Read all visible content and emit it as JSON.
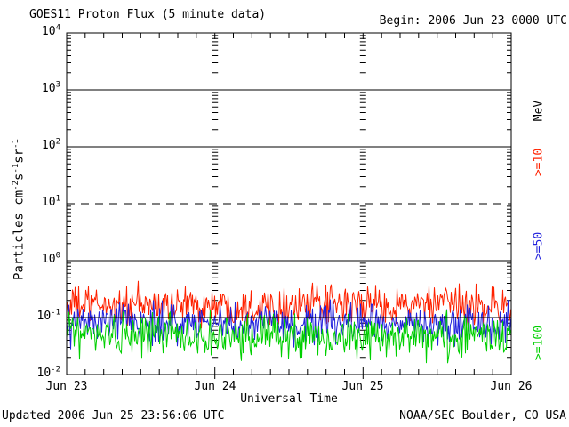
{
  "chart_data": {
    "type": "line",
    "title": "GOES11 Proton Flux (5 minute data)",
    "begin_annotation": "Begin: 2006 Jun 23 0000 UTC",
    "xlabel": "Universal Time",
    "ylabel": "Particles cm-2 s-1 sr-1",
    "ylabel_parts": [
      "Particles cm",
      "-2",
      "s",
      "-1",
      "sr",
      "-1"
    ],
    "x_ticks": [
      "Jun 23",
      "Jun 24",
      "Jun 25",
      "Jun 26"
    ],
    "x_range_days": 3,
    "x_minor_ticks_per_day": 8,
    "y_scale": "log10",
    "y_log_range": [
      -2,
      4
    ],
    "y_ticks": [
      {
        "base": "10",
        "exp": "4"
      },
      {
        "base": "10",
        "exp": "3"
      },
      {
        "base": "10",
        "exp": "2"
      },
      {
        "base": "10",
        "exp": "1"
      },
      {
        "base": "10",
        "exp": "0"
      },
      {
        "base": "10",
        "exp": "-1"
      },
      {
        "base": "10",
        "exp": "-2"
      }
    ],
    "grid": {
      "solid_exponents": [
        3,
        2,
        0,
        -1
      ],
      "dashed_exponents": [
        1
      ],
      "day_boundary_tick_lines_at_day": [
        1,
        2
      ]
    },
    "legend_unit": "MeV",
    "series": [
      {
        "name": ">=10",
        "unit": "MeV",
        "color": "#ff2200",
        "median_flux": 0.165,
        "log10_spread": 0.33,
        "approx_flux_range": [
          0.06,
          0.45
        ]
      },
      {
        "name": ">=50",
        "unit": "MeV",
        "color": "#2222dd",
        "median_flux": 0.079,
        "log10_spread": 0.33,
        "approx_flux_range": [
          0.03,
          0.2
        ]
      },
      {
        "name": ">=100",
        "unit": "MeV",
        "color": "#00d000",
        "median_flux": 0.047,
        "log10_spread": 0.36,
        "approx_flux_range": [
          0.015,
          0.11
        ]
      }
    ]
  },
  "footer": {
    "updated": "Updated 2006 Jun 25 23:56:06 UTC",
    "source": "NOAA/SEC Boulder, CO USA"
  },
  "colors": {
    "axis": "#000000",
    "background": "#ffffff"
  }
}
